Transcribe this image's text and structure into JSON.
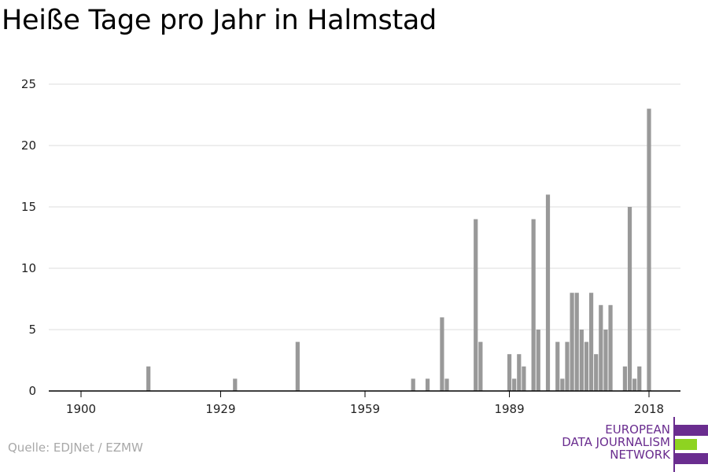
{
  "chart_data": {
    "type": "bar",
    "title": "Heiße Tage pro Jahr in Halmstad",
    "xlabel": "",
    "ylabel": "",
    "xlim": [
      1894,
      2024
    ],
    "ylim": [
      0,
      25
    ],
    "yticks": [
      0,
      5,
      10,
      15,
      20,
      25
    ],
    "xticks": [
      1900,
      1929,
      1959,
      1989,
      2018
    ],
    "grid": true,
    "bar_color": "#999999",
    "x": [
      1914,
      1932,
      1945,
      1969,
      1972,
      1975,
      1976,
      1982,
      1983,
      1989,
      1990,
      1991,
      1992,
      1994,
      1995,
      1997,
      1999,
      2000,
      2001,
      2002,
      2003,
      2004,
      2005,
      2006,
      2007,
      2008,
      2009,
      2010,
      2011,
      2013,
      2014,
      2015,
      2016,
      2018
    ],
    "values": [
      2,
      1,
      4,
      1,
      1,
      6,
      1,
      14,
      4,
      3,
      1,
      3,
      2,
      14,
      5,
      16,
      4,
      1,
      4,
      8,
      8,
      5,
      4,
      8,
      3,
      7,
      5,
      7,
      0,
      2,
      15,
      1,
      2,
      23
    ]
  },
  "source": "Quelle: EDJNet / EZMW",
  "logo": {
    "lines": [
      "EUROPEAN",
      "DATA JOURNALISM",
      "NETWORK"
    ],
    "purple": "#6a2d8f",
    "green": "#8ed321"
  }
}
